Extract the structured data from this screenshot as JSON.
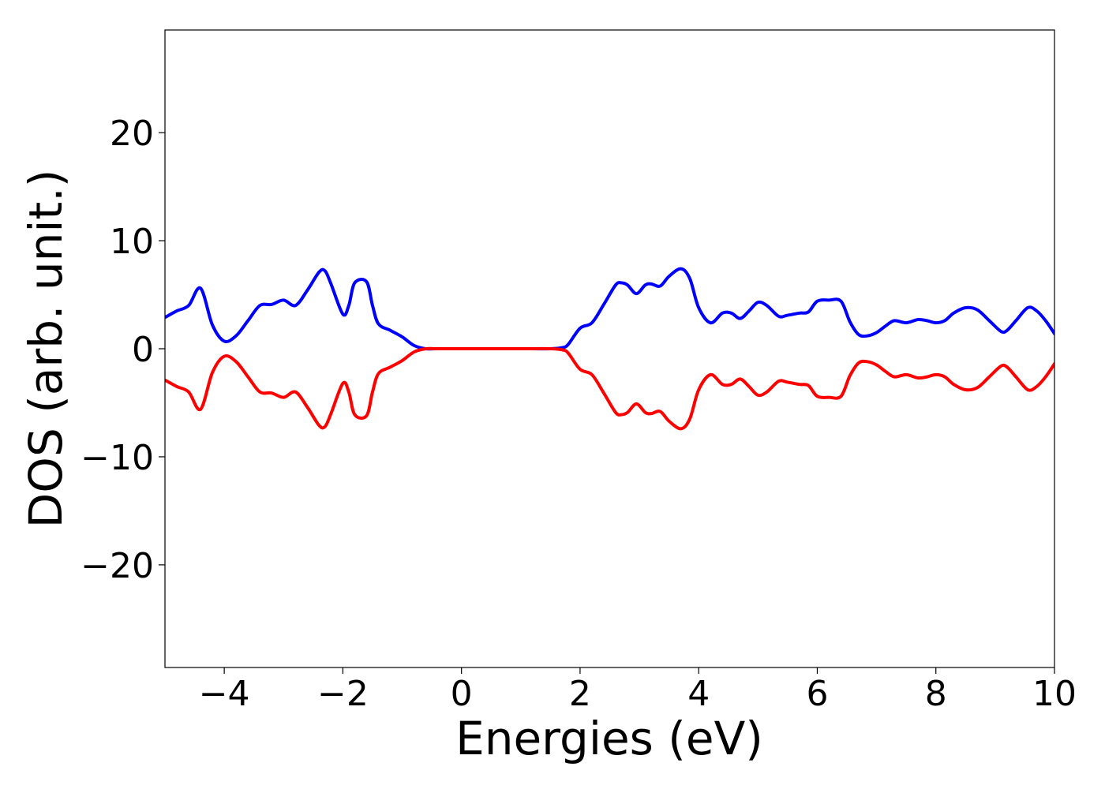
{
  "chart_data": {
    "type": "line",
    "title": "",
    "xlabel": "Energies (eV)",
    "ylabel": "DOS (arb. unit.)",
    "xlim": [
      -5,
      10
    ],
    "ylim": [
      -29.5,
      29.5
    ],
    "grid": false,
    "legend": "none",
    "x_ticks": [
      {
        "value": -4,
        "label": "−4"
      },
      {
        "value": -2,
        "label": "−2"
      },
      {
        "value": 0,
        "label": "0"
      },
      {
        "value": 2,
        "label": "2"
      },
      {
        "value": 4,
        "label": "4"
      },
      {
        "value": 6,
        "label": "6"
      },
      {
        "value": 8,
        "label": "8"
      },
      {
        "value": 10,
        "label": "10"
      }
    ],
    "y_ticks": [
      {
        "value": 20,
        "label": "20"
      },
      {
        "value": 10,
        "label": "10"
      },
      {
        "value": 0,
        "label": "0"
      },
      {
        "value": -10,
        "label": "−10"
      },
      {
        "value": -20,
        "label": "−20"
      }
    ],
    "series": [
      {
        "color": "#0000ff",
        "x": [
          -5.0,
          -4.8,
          -4.6,
          -4.4,
          -4.2,
          -4.0,
          -3.8,
          -3.6,
          -3.4,
          -3.2,
          -3.0,
          -2.8,
          -2.6,
          -2.4,
          -2.3,
          -2.2,
          -2.0,
          -1.9,
          -1.8,
          -1.6,
          -1.5,
          -1.4,
          -1.2,
          -1.0,
          -0.8,
          -0.6,
          -0.4,
          0.0,
          0.5,
          1.0,
          1.5,
          1.7,
          1.8,
          2.0,
          2.2,
          2.4,
          2.6,
          2.7,
          2.8,
          2.95,
          3.1,
          3.2,
          3.35,
          3.5,
          3.7,
          3.85,
          4.0,
          4.2,
          4.4,
          4.55,
          4.7,
          4.85,
          5.0,
          5.15,
          5.35,
          5.5,
          5.7,
          5.85,
          6.0,
          6.2,
          6.4,
          6.55,
          6.7,
          6.85,
          7.0,
          7.15,
          7.3,
          7.5,
          7.7,
          7.85,
          8.0,
          8.15,
          8.3,
          8.5,
          8.7,
          8.9,
          9.1,
          9.2,
          9.35,
          9.55,
          9.7,
          9.85,
          10.0
        ],
        "y": [
          2.9,
          3.5,
          4.0,
          5.6,
          2.2,
          0.7,
          1.2,
          2.6,
          4.0,
          4.1,
          4.5,
          4.0,
          5.4,
          7.1,
          7.2,
          6.0,
          3.2,
          4.0,
          6.1,
          6.2,
          4.0,
          2.3,
          1.7,
          1.1,
          0.3,
          0.0,
          0.0,
          0.0,
          0.0,
          0.0,
          0.0,
          0.1,
          0.4,
          1.9,
          2.4,
          4.1,
          5.9,
          6.1,
          5.9,
          5.1,
          5.9,
          6.0,
          5.8,
          6.7,
          7.4,
          6.5,
          3.8,
          2.4,
          3.3,
          3.3,
          2.8,
          3.5,
          4.3,
          4.0,
          3.0,
          3.1,
          3.3,
          3.4,
          4.4,
          4.5,
          4.4,
          2.5,
          1.3,
          1.2,
          1.5,
          2.1,
          2.6,
          2.4,
          2.7,
          2.6,
          2.4,
          2.6,
          3.3,
          3.8,
          3.6,
          2.6,
          1.6,
          1.7,
          2.6,
          3.8,
          3.5,
          2.6,
          1.4
        ]
      },
      {
        "color": "#ff0000",
        "x": [
          -5.0,
          -4.8,
          -4.6,
          -4.4,
          -4.2,
          -4.0,
          -3.8,
          -3.6,
          -3.4,
          -3.2,
          -3.0,
          -2.8,
          -2.6,
          -2.4,
          -2.3,
          -2.2,
          -2.0,
          -1.9,
          -1.8,
          -1.6,
          -1.5,
          -1.4,
          -1.2,
          -1.0,
          -0.8,
          -0.6,
          -0.4,
          0.0,
          0.5,
          1.0,
          1.5,
          1.7,
          1.8,
          2.0,
          2.2,
          2.4,
          2.6,
          2.7,
          2.8,
          2.95,
          3.1,
          3.2,
          3.35,
          3.5,
          3.7,
          3.85,
          4.0,
          4.2,
          4.4,
          4.55,
          4.7,
          4.85,
          5.0,
          5.15,
          5.35,
          5.5,
          5.7,
          5.85,
          6.0,
          6.2,
          6.4,
          6.55,
          6.7,
          6.85,
          7.0,
          7.15,
          7.3,
          7.5,
          7.7,
          7.85,
          8.0,
          8.15,
          8.3,
          8.5,
          8.7,
          8.9,
          9.1,
          9.2,
          9.35,
          9.55,
          9.7,
          9.85,
          10.0
        ],
        "y": [
          -2.9,
          -3.5,
          -4.0,
          -5.6,
          -2.2,
          -0.7,
          -1.2,
          -2.6,
          -4.0,
          -4.1,
          -4.5,
          -4.0,
          -5.4,
          -7.1,
          -7.2,
          -6.0,
          -3.2,
          -4.0,
          -6.1,
          -6.2,
          -4.0,
          -2.3,
          -1.7,
          -1.1,
          -0.3,
          0.0,
          0.0,
          0.0,
          0.0,
          0.0,
          0.0,
          -0.1,
          -0.4,
          -1.9,
          -2.4,
          -4.1,
          -5.9,
          -6.1,
          -5.9,
          -5.1,
          -5.9,
          -6.0,
          -5.8,
          -6.7,
          -7.4,
          -6.5,
          -3.8,
          -2.4,
          -3.3,
          -3.3,
          -2.8,
          -3.5,
          -4.3,
          -4.0,
          -3.0,
          -3.1,
          -3.3,
          -3.4,
          -4.4,
          -4.5,
          -4.4,
          -2.5,
          -1.3,
          -1.2,
          -1.5,
          -2.1,
          -2.6,
          -2.4,
          -2.7,
          -2.6,
          -2.4,
          -2.6,
          -3.3,
          -3.8,
          -3.6,
          -2.6,
          -1.6,
          -1.7,
          -2.6,
          -3.8,
          -3.5,
          -2.6,
          -1.4
        ]
      }
    ]
  }
}
